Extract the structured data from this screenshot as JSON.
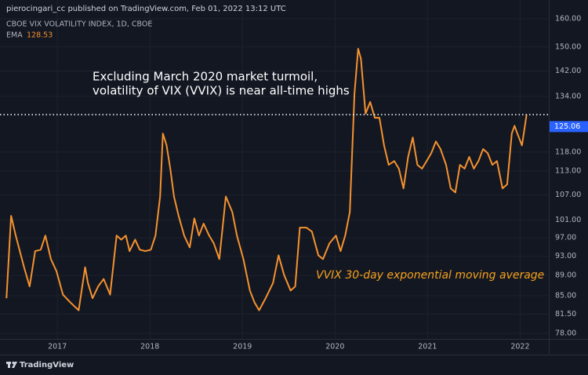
{
  "header": {
    "publisher": "pierocingari_cc published on TradingView.com, Feb 01, 2022 13:12 UTC",
    "symbol": "CBOE VIX VOLATILITY INDEX, 1D, CBOE",
    "indicator": "EMA",
    "indicator_value": 128.53
  },
  "footer": {
    "logo": "TradingView"
  },
  "chart_data": {
    "type": "line",
    "log_scale": true,
    "grid": true,
    "annotations": [
      "Excluding March 2020 market turmoil,",
      "volatility of VIX (VVIX) is near all-time highs",
      "VVIX 30-day exponential moving average"
    ],
    "last_price": 125.06,
    "xlim": [
      2016.38,
      2022.31
    ],
    "xticks": [
      2017,
      2018,
      2019,
      2020,
      2021,
      2022
    ],
    "ylim": [
      77,
      167
    ],
    "yticks": [
      {
        "value": 160,
        "label": "160.00"
      },
      {
        "value": 150,
        "label": "150.00"
      },
      {
        "value": 142,
        "label": "142.00"
      },
      {
        "value": 134,
        "label": "134.00"
      },
      {
        "value": 118,
        "label": "118.00"
      },
      {
        "value": 113,
        "label": "113.00"
      },
      {
        "value": 107,
        "label": "107.00"
      },
      {
        "value": 101,
        "label": "101.00"
      },
      {
        "value": 97,
        "label": "97.00"
      },
      {
        "value": 93,
        "label": "93.00"
      },
      {
        "value": 89,
        "label": "89.00"
      },
      {
        "value": 85,
        "label": "85.00"
      },
      {
        "value": 81.5,
        "label": "81.50"
      },
      {
        "value": 78,
        "label": "78.00"
      }
    ],
    "x": [
      2016.45,
      2016.5,
      2016.55,
      2016.64,
      2016.7,
      2016.76,
      2016.82,
      2016.87,
      2016.93,
      2016.99,
      2017.06,
      2017.14,
      2017.23,
      2017.3,
      2017.33,
      2017.38,
      2017.44,
      2017.5,
      2017.57,
      2017.64,
      2017.69,
      2017.74,
      2017.78,
      2017.84,
      2017.89,
      2017.95,
      2018.01,
      2018.06,
      2018.11,
      2018.14,
      2018.18,
      2018.22,
      2018.26,
      2018.31,
      2018.37,
      2018.43,
      2018.48,
      2018.53,
      2018.58,
      2018.64,
      2018.69,
      2018.75,
      2018.82,
      2018.89,
      2018.94,
      2019.01,
      2019.08,
      2019.13,
      2019.18,
      2019.25,
      2019.33,
      2019.39,
      2019.45,
      2019.52,
      2019.57,
      2019.62,
      2019.69,
      2019.75,
      2019.82,
      2019.87,
      2019.94,
      2020.01,
      2020.06,
      2020.11,
      2020.16,
      2020.21,
      2020.25,
      2020.28,
      2020.33,
      2020.38,
      2020.43,
      2020.48,
      2020.53,
      2020.58,
      2020.64,
      2020.69,
      2020.74,
      2020.79,
      2020.84,
      2020.89,
      2020.94,
      2020.99,
      2021.04,
      2021.09,
      2021.14,
      2021.2,
      2021.25,
      2021.3,
      2021.35,
      2021.4,
      2021.45,
      2021.5,
      2021.55,
      2021.6,
      2021.65,
      2021.7,
      2021.75,
      2021.81,
      2021.86,
      2021.91,
      2021.94,
      2021.97,
      2022.02,
      2022.07
    ],
    "series": [
      {
        "name": "EMA",
        "color": "#f5922f",
        "values": [
          84.5,
          102,
          97.5,
          90.7,
          86.8,
          94.1,
          94.4,
          97.5,
          92.4,
          89.9,
          85.2,
          83.7,
          82.2,
          90.7,
          87.5,
          84.5,
          86.8,
          88.3,
          85.2,
          97.5,
          96.6,
          97.5,
          94.1,
          96.6,
          94.4,
          94.1,
          94.4,
          97.5,
          106.6,
          123.1,
          119.8,
          113.6,
          106.6,
          102,
          97.5,
          94.9,
          101.4,
          97.5,
          100.2,
          97.5,
          95.8,
          92.4,
          106.6,
          102.9,
          97.5,
          92.4,
          86.0,
          83.7,
          82.2,
          84.5,
          87.5,
          93.2,
          89.1,
          86.0,
          86.8,
          99.3,
          99.3,
          98.4,
          93.2,
          92.4,
          95.8,
          97.5,
          94.1,
          97.5,
          102.9,
          134.7,
          149.4,
          146.0,
          128.8,
          132.3,
          127.6,
          127.6,
          119.8,
          114.6,
          115.6,
          113.6,
          108.6,
          116.7,
          122.0,
          114.6,
          113.6,
          115.6,
          117.7,
          120.9,
          118.8,
          114.6,
          108.6,
          107.6,
          114.6,
          113.6,
          116.7,
          113.6,
          115.6,
          118.8,
          117.7,
          114.6,
          115.6,
          108.6,
          109.6,
          123.1,
          125.3,
          123.1,
          119.8,
          128.53
        ]
      }
    ]
  }
}
